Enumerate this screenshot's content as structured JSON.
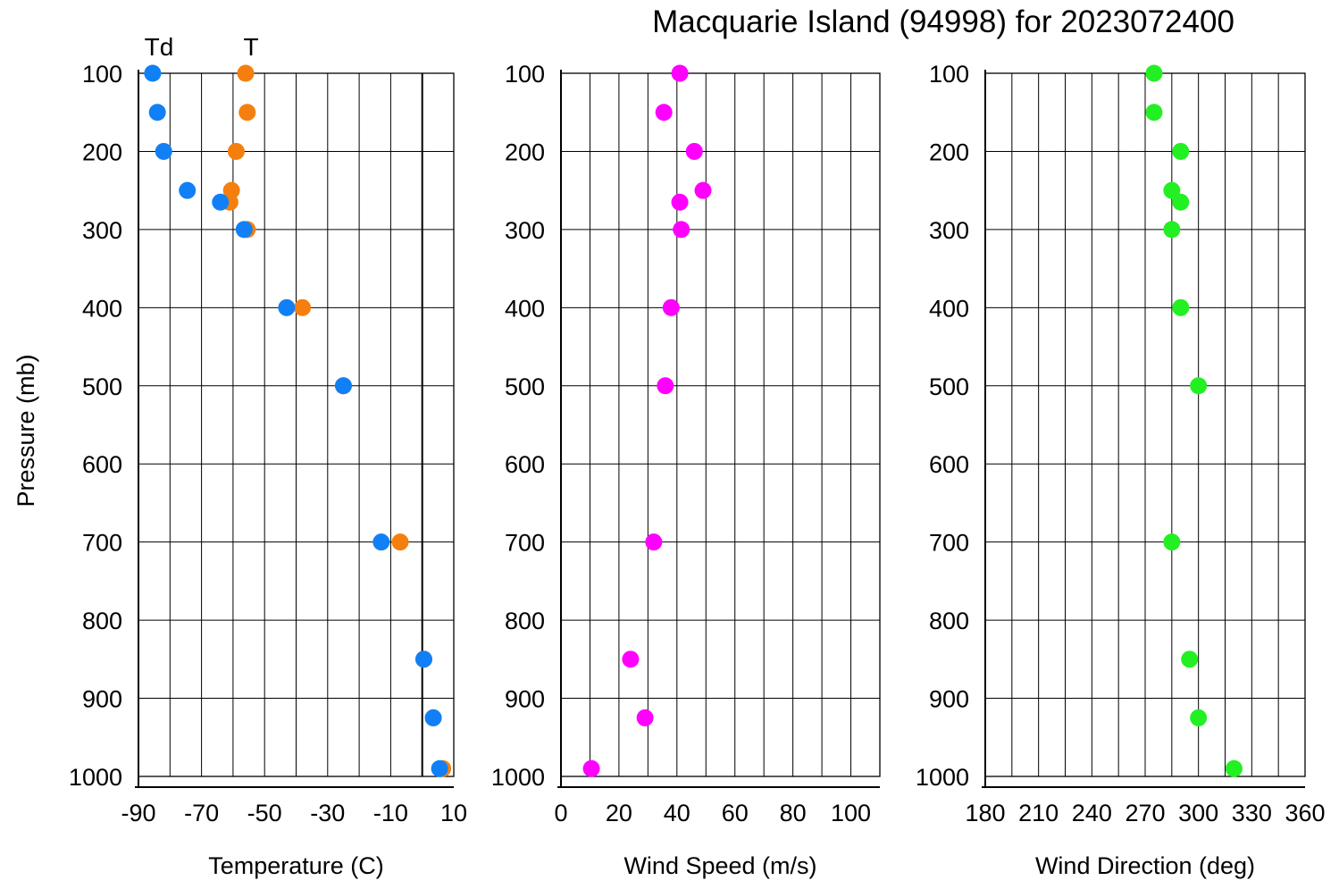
{
  "title": "Macquarie Island (94998) for 2023072400",
  "y_axis_label": "Pressure (mb)",
  "pressure_ticks": [
    100,
    200,
    300,
    400,
    500,
    600,
    700,
    800,
    900,
    1000
  ],
  "chart_data": [
    {
      "type": "scatter",
      "xlabel": "Temperature (C)",
      "ylabel": "Pressure (mb)",
      "xlim": [
        -90,
        10
      ],
      "ylim": [
        1000,
        100
      ],
      "x_ticks": [
        -90,
        -70,
        -50,
        -30,
        -10,
        10
      ],
      "grid": true,
      "zero_line": 0,
      "series": [
        {
          "name": "T",
          "color": "#f57f0e",
          "points": [
            {
              "p": 100,
              "x": -56
            },
            {
              "p": 150,
              "x": -55.5
            },
            {
              "p": 200,
              "x": -59
            },
            {
              "p": 250,
              "x": -60.5
            },
            {
              "p": 265,
              "x": -61
            },
            {
              "p": 300,
              "x": -55.5
            },
            {
              "p": 400,
              "x": -38
            },
            {
              "p": 500,
              "x": -25
            },
            {
              "p": 700,
              "x": -7
            },
            {
              "p": 850,
              "x": 0.5
            },
            {
              "p": 925,
              "x": 3.5
            },
            {
              "p": 990,
              "x": 6.5
            }
          ]
        },
        {
          "name": "Td",
          "color": "#1180f6",
          "points": [
            {
              "p": 100,
              "x": -85.5
            },
            {
              "p": 150,
              "x": -84
            },
            {
              "p": 200,
              "x": -82
            },
            {
              "p": 250,
              "x": -74.5
            },
            {
              "p": 265,
              "x": -64
            },
            {
              "p": 300,
              "x": -56.5
            },
            {
              "p": 400,
              "x": -43
            },
            {
              "p": 500,
              "x": -25
            },
            {
              "p": 700,
              "x": -13
            },
            {
              "p": 850,
              "x": 0.5
            },
            {
              "p": 925,
              "x": 3.5
            },
            {
              "p": 990,
              "x": 5.5
            }
          ]
        }
      ]
    },
    {
      "type": "scatter",
      "xlabel": "Wind Speed (m/s)",
      "ylabel": "Pressure (mb)",
      "xlim": [
        0,
        110
      ],
      "ylim": [
        1000,
        100
      ],
      "x_ticks": [
        0,
        20,
        40,
        60,
        80,
        100
      ],
      "grid": true,
      "series": [
        {
          "color": "#ff00ff",
          "points": [
            {
              "p": 100,
              "x": 41
            },
            {
              "p": 150,
              "x": 35.5
            },
            {
              "p": 200,
              "x": 46
            },
            {
              "p": 250,
              "x": 49
            },
            {
              "p": 265,
              "x": 41
            },
            {
              "p": 300,
              "x": 41.5
            },
            {
              "p": 400,
              "x": 38
            },
            {
              "p": 500,
              "x": 36
            },
            {
              "p": 700,
              "x": 32
            },
            {
              "p": 850,
              "x": 24
            },
            {
              "p": 925,
              "x": 29
            },
            {
              "p": 990,
              "x": 10.5
            }
          ]
        }
      ]
    },
    {
      "type": "scatter",
      "xlabel": "Wind Direction (deg)",
      "ylabel": "Pressure (mb)",
      "xlim": [
        180,
        360
      ],
      "ylim": [
        1000,
        100
      ],
      "x_ticks": [
        180,
        210,
        240,
        270,
        300,
        330,
        360
      ],
      "grid": true,
      "series": [
        {
          "color": "#22f022",
          "points": [
            {
              "p": 100,
              "x": 275
            },
            {
              "p": 150,
              "x": 275
            },
            {
              "p": 200,
              "x": 290
            },
            {
              "p": 250,
              "x": 285
            },
            {
              "p": 265,
              "x": 290
            },
            {
              "p": 300,
              "x": 285
            },
            {
              "p": 400,
              "x": 290
            },
            {
              "p": 500,
              "x": 300
            },
            {
              "p": 700,
              "x": 285
            },
            {
              "p": 850,
              "x": 295
            },
            {
              "p": 925,
              "x": 300
            },
            {
              "p": 990,
              "x": 320
            }
          ]
        }
      ]
    }
  ]
}
